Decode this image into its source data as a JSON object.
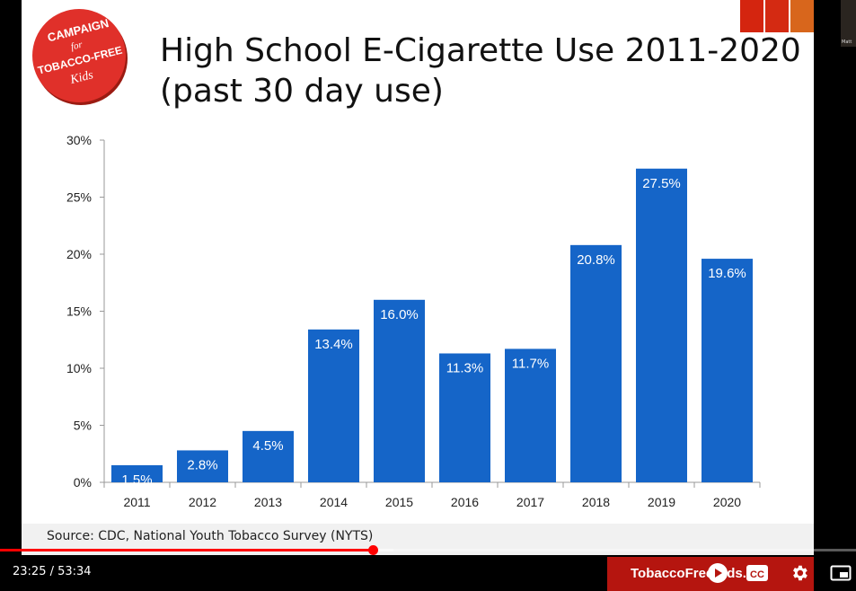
{
  "slide": {
    "title_line1": "High School E-Cigarette Use 2011-2020",
    "title_line2": "(past 30 day use)",
    "source": "Source:  CDC, National Youth Tobacco Survey (NYTS)",
    "logo": {
      "line1": "CAMPAIGN",
      "line2": "for",
      "line3": "TOBACCO-FREE",
      "line4": "Kids",
      "icon": "campaign-logo"
    }
  },
  "chart_data": {
    "type": "bar",
    "categories": [
      "2011",
      "2012",
      "2013",
      "2014",
      "2015",
      "2016",
      "2017",
      "2018",
      "2019",
      "2020"
    ],
    "values": [
      1.5,
      2.8,
      4.5,
      13.4,
      16.0,
      11.3,
      11.7,
      20.8,
      27.5,
      19.6
    ],
    "data_labels": [
      "1.5%",
      "2.8%",
      "4.5%",
      "13.4%",
      "16.0%",
      "11.3%",
      "11.7%",
      "20.8%",
      "27.5%",
      "19.6%"
    ],
    "ylim": [
      0,
      30
    ],
    "yticks": [
      0,
      5,
      10,
      15,
      20,
      25,
      30
    ],
    "ytick_labels": [
      "0%",
      "5%",
      "10%",
      "15%",
      "20%",
      "25%",
      "30%"
    ],
    "bar_color": "#1565c8",
    "grid": false,
    "legend": "none"
  },
  "player": {
    "time_display": "23:25 / 53:34",
    "progress_fraction": 0.437,
    "banner_text": "TobaccoFreeKids.org",
    "controls": [
      "play-icon",
      "captions-icon",
      "settings-icon",
      "miniplayer-icon"
    ],
    "cc_label": "CC",
    "overlay_label": "Matt",
    "accent": "#ff0000"
  }
}
